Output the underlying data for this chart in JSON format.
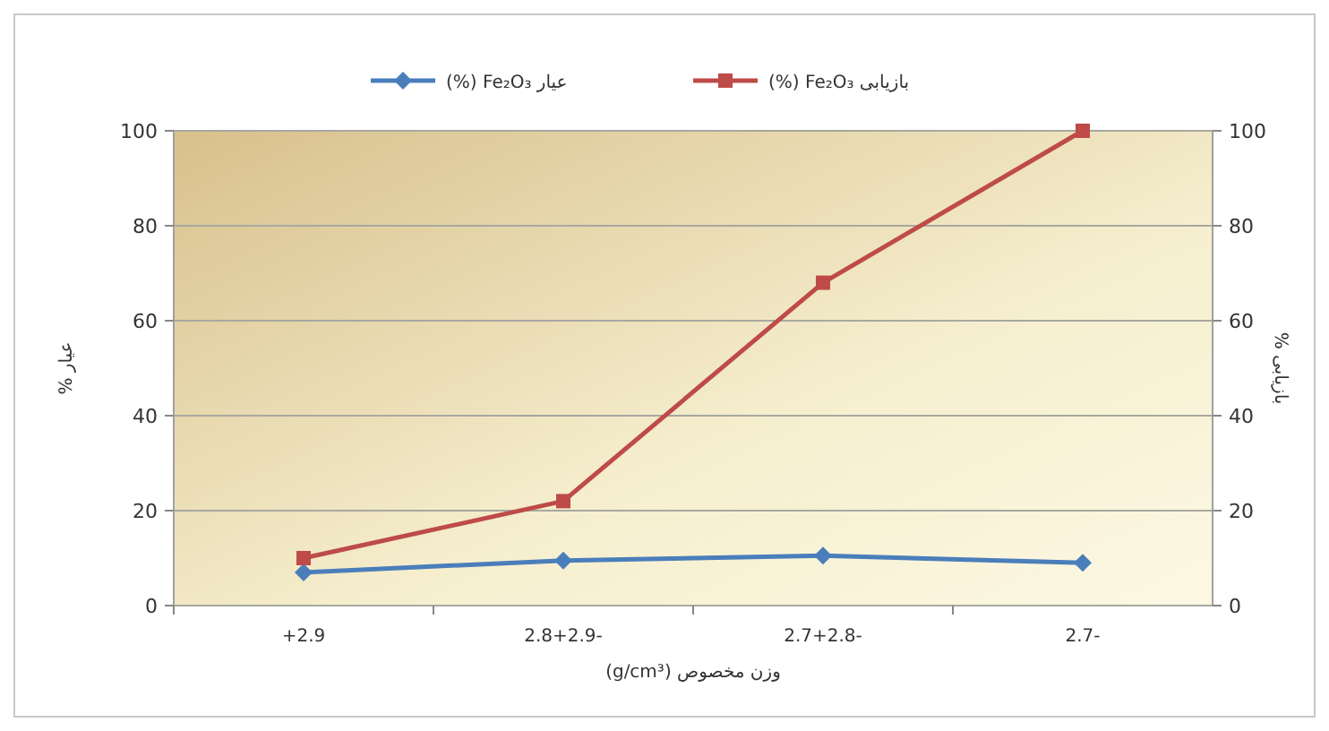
{
  "chart_data": {
    "type": "line",
    "categories": [
      "+2.9",
      "2.8+2.9-",
      "2.7+2.8-",
      "2.7-"
    ],
    "series": [
      {
        "name": "عیار Fe₂O₃ (%)",
        "color": "#4a7ebb",
        "marker": "diamond",
        "values": [
          7,
          9.5,
          10.5,
          9
        ]
      },
      {
        "name": "بازیابی Fe₂O₃ (%)",
        "color": "#be4b48",
        "marker": "square",
        "values": [
          10,
          22,
          68,
          100
        ]
      }
    ],
    "xlabel": "وزن مخصوص (g/cm³)",
    "ylabel": "عیار %",
    "y2label": "بازیابی %",
    "ylim": [
      0,
      100
    ],
    "yticks": [
      0,
      20,
      40,
      60,
      80,
      100
    ],
    "y2lim": [
      0,
      100
    ],
    "y2ticks": [
      0,
      20,
      40,
      60,
      80,
      100
    ],
    "grid": "y",
    "legend": "top"
  }
}
